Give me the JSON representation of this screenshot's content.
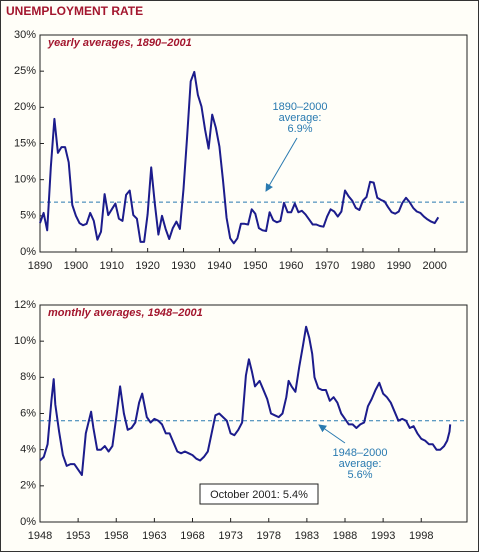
{
  "title": "UNEMPLOYMENT RATE",
  "chart_data": [
    {
      "type": "line",
      "subtitle": "yearly averages, 1890–2001",
      "color": "#1c1c8c",
      "reference_color": "#2a7ab0",
      "x": [
        1890,
        1891,
        1892,
        1893,
        1894,
        1895,
        1896,
        1897,
        1898,
        1899,
        1900,
        1901,
        1902,
        1903,
        1904,
        1905,
        1906,
        1907,
        1908,
        1909,
        1910,
        1911,
        1912,
        1913,
        1914,
        1915,
        1916,
        1917,
        1918,
        1919,
        1920,
        1921,
        1922,
        1923,
        1924,
        1925,
        1926,
        1927,
        1928,
        1929,
        1930,
        1931,
        1932,
        1933,
        1934,
        1935,
        1936,
        1937,
        1938,
        1939,
        1940,
        1941,
        1942,
        1943,
        1944,
        1945,
        1946,
        1947,
        1948,
        1949,
        1950,
        1951,
        1952,
        1953,
        1954,
        1955,
        1956,
        1957,
        1958,
        1959,
        1960,
        1961,
        1962,
        1963,
        1964,
        1965,
        1966,
        1967,
        1968,
        1969,
        1970,
        1971,
        1972,
        1973,
        1974,
        1975,
        1976,
        1977,
        1978,
        1979,
        1980,
        1981,
        1982,
        1983,
        1984,
        1985,
        1986,
        1987,
        1988,
        1989,
        1990,
        1991,
        1992,
        1993,
        1994,
        1995,
        1996,
        1997,
        1998,
        1999,
        2000,
        2001
      ],
      "values": [
        4,
        5.4,
        3,
        11.7,
        18.4,
        13.7,
        14.5,
        14.5,
        12.4,
        6.5,
        5,
        4,
        3.7,
        3.9,
        5.4,
        4.3,
        1.7,
        2.8,
        8,
        5.1,
        5.9,
        6.7,
        4.6,
        4.3,
        7.9,
        8.5,
        5.1,
        4.6,
        1.4,
        1.4,
        5.2,
        11.7,
        6.7,
        2.4,
        5,
        3.2,
        1.8,
        3.3,
        4.2,
        3.2,
        8.7,
        15.9,
        23.6,
        24.9,
        21.7,
        20.1,
        16.9,
        14.3,
        19,
        17.2,
        14.6,
        9.9,
        4.7,
        1.9,
        1.2,
        1.9,
        3.9,
        3.9,
        3.8,
        5.9,
        5.3,
        3.3,
        3,
        2.9,
        5.5,
        4.4,
        4.1,
        4.3,
        6.8,
        5.5,
        5.5,
        6.7,
        5.5,
        5.7,
        5.2,
        4.5,
        3.8,
        3.8,
        3.6,
        3.5,
        4.9,
        5.9,
        5.6,
        4.9,
        5.6,
        8.5,
        7.7,
        7.1,
        6.1,
        5.8,
        7.1,
        7.6,
        9.7,
        9.6,
        7.5,
        7.2,
        7,
        6.2,
        5.5,
        5.3,
        5.6,
        6.8,
        7.5,
        6.9,
        6.1,
        5.6,
        5.4,
        4.9,
        4.5,
        4.2,
        4,
        4.8
      ],
      "xlim": [
        1890,
        2009
      ],
      "xticks": [
        1890,
        1900,
        1910,
        1920,
        1930,
        1940,
        1950,
        1960,
        1970,
        1980,
        1990,
        2000
      ],
      "ylim": [
        0,
        30
      ],
      "yticks": [
        {
          "value": 0,
          "label": "0%"
        },
        {
          "value": 5,
          "label": "5%"
        },
        {
          "value": 10,
          "label": "10%"
        },
        {
          "value": 15,
          "label": "15%"
        },
        {
          "value": 20,
          "label": "20%"
        },
        {
          "value": 25,
          "label": "25%"
        },
        {
          "value": 30,
          "label": "30%"
        }
      ],
      "reference": {
        "value": 6.9,
        "label": "6.9%"
      },
      "annotation": [
        "1890–2000",
        "average:"
      ]
    },
    {
      "type": "line",
      "subtitle": "monthly averages, 1948–2001",
      "color": "#1c1c8c",
      "reference_color": "#2a7ab0",
      "x": [
        1948.0,
        1948.5,
        1949.0,
        1949.5,
        1949.8,
        1950.0,
        1950.5,
        1951.0,
        1951.5,
        1952.0,
        1952.5,
        1953.0,
        1953.5,
        1954.0,
        1954.7,
        1955.0,
        1955.5,
        1956.0,
        1956.5,
        1957.0,
        1957.5,
        1958.0,
        1958.5,
        1959.0,
        1959.5,
        1960.0,
        1960.5,
        1961.0,
        1961.4,
        1962.0,
        1962.5,
        1963.0,
        1963.5,
        1964.0,
        1964.5,
        1965.0,
        1965.5,
        1966.0,
        1966.5,
        1967.0,
        1967.5,
        1968.0,
        1968.5,
        1969.0,
        1969.5,
        1970.0,
        1970.5,
        1971.0,
        1971.5,
        1972.0,
        1972.5,
        1973.0,
        1973.5,
        1974.0,
        1974.5,
        1975.0,
        1975.4,
        1975.8,
        1976.2,
        1976.8,
        1977.2,
        1977.8,
        1978.3,
        1978.8,
        1979.3,
        1979.8,
        1980.3,
        1980.6,
        1981.0,
        1981.5,
        1982.0,
        1982.5,
        1982.9,
        1983.3,
        1983.7,
        1984.0,
        1984.5,
        1985.0,
        1985.5,
        1986.0,
        1986.5,
        1987.0,
        1987.5,
        1988.0,
        1988.5,
        1989.0,
        1989.5,
        1990.0,
        1990.5,
        1991.0,
        1991.5,
        1992.0,
        1992.5,
        1993.0,
        1993.5,
        1994.0,
        1994.5,
        1995.0,
        1995.5,
        1996.0,
        1996.5,
        1997.0,
        1997.5,
        1998.0,
        1998.5,
        1999.0,
        1999.5,
        2000.0,
        2000.5,
        2001.0,
        2001.4,
        2001.7,
        2001.8
      ],
      "values": [
        3.4,
        3.6,
        4.3,
        6.7,
        7.9,
        6.5,
        5,
        3.7,
        3.1,
        3.2,
        3.2,
        2.9,
        2.6,
        4.9,
        6.1,
        5.2,
        4,
        4,
        4.2,
        3.9,
        4.2,
        5.8,
        7.5,
        6,
        5.1,
        5.2,
        5.5,
        6.6,
        7.1,
        5.8,
        5.5,
        5.7,
        5.6,
        5.4,
        4.9,
        4.9,
        4.4,
        3.9,
        3.8,
        3.9,
        3.8,
        3.7,
        3.5,
        3.4,
        3.6,
        3.9,
        4.9,
        5.9,
        6,
        5.8,
        5.6,
        4.9,
        4.8,
        5.1,
        5.5,
        8.1,
        9,
        8.3,
        7.5,
        7.8,
        7.4,
        6.8,
        6,
        5.9,
        5.8,
        6,
        6.9,
        7.8,
        7.5,
        7.2,
        8.6,
        9.8,
        10.8,
        10.2,
        9.3,
        8,
        7.4,
        7.3,
        7.3,
        6.7,
        6.9,
        6.6,
        6,
        5.7,
        5.4,
        5.4,
        5.2,
        5.4,
        5.5,
        6.4,
        6.8,
        7.3,
        7.7,
        7.1,
        6.9,
        6.6,
        6.1,
        5.6,
        5.7,
        5.6,
        5.2,
        5.3,
        4.9,
        4.6,
        4.5,
        4.3,
        4.3,
        4,
        4,
        4.2,
        4.5,
        5,
        5.4
      ],
      "xlim": [
        1948,
        2004
      ],
      "xticks": [
        1948,
        1953,
        1958,
        1963,
        1968,
        1973,
        1978,
        1983,
        1988,
        1993,
        1998
      ],
      "ylim": [
        0,
        12
      ],
      "yticks": [
        {
          "value": 0,
          "label": "0%"
        },
        {
          "value": 2,
          "label": "2%"
        },
        {
          "value": 4,
          "label": "4%"
        },
        {
          "value": 6,
          "label": "6%"
        },
        {
          "value": 8,
          "label": "8%"
        },
        {
          "value": 10,
          "label": "10%"
        },
        {
          "value": 12,
          "label": "12%"
        }
      ],
      "reference": {
        "value": 5.6,
        "label": "5.6%"
      },
      "annotation": [
        "1948–2000",
        "average:"
      ],
      "callout": "October 2001: 5.4%"
    }
  ]
}
